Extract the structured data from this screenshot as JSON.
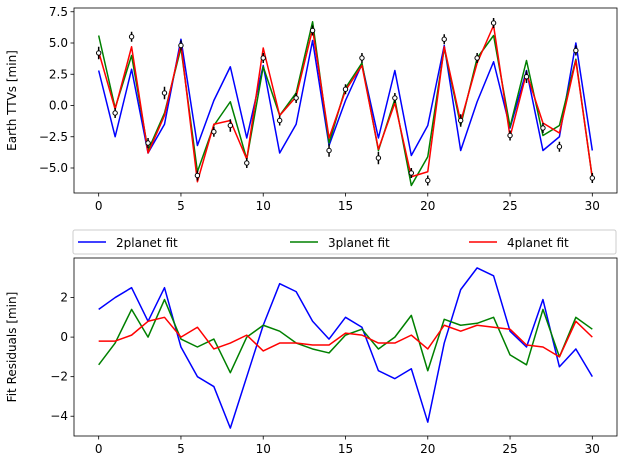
{
  "chart_data": [
    {
      "type": "line",
      "ylabel": "Earth TTVs [min]",
      "xlabel": "",
      "xlim": [
        -1.5,
        31.5
      ],
      "ylim": [
        -7.0,
        7.8
      ],
      "xticks": [
        0,
        5,
        10,
        15,
        20,
        25,
        30
      ],
      "xtick_labels": [
        "0",
        "5",
        "10",
        "15",
        "20",
        "25",
        "30"
      ],
      "yticks": [
        -5.0,
        -2.5,
        0.0,
        2.5,
        5.0,
        7.5
      ],
      "ytick_labels": [
        "−5.0",
        "−2.5",
        "0.0",
        "2.5",
        "5.0",
        "7.5"
      ],
      "grid": false,
      "x": [
        0,
        1,
        2,
        3,
        4,
        5,
        6,
        7,
        8,
        9,
        10,
        11,
        12,
        13,
        14,
        15,
        16,
        17,
        18,
        19,
        20,
        21,
        22,
        23,
        24,
        25,
        26,
        27,
        28,
        29,
        30
      ],
      "series": [
        {
          "name": "2planet fit",
          "color": "#0000ff",
          "values": [
            2.8,
            -2.5,
            2.9,
            -3.8,
            -1.5,
            5.3,
            -3.2,
            0.4,
            3.1,
            -2.6,
            3.2,
            -3.8,
            -1.5,
            5.2,
            -3.2,
            0.4,
            3.3,
            -2.6,
            2.8,
            -4.0,
            -1.6,
            4.8,
            -3.6,
            0.3,
            3.5,
            -1.8,
            2.8,
            -3.6,
            -2.5,
            5.0,
            -3.6
          ]
        },
        {
          "name": "3planet fit",
          "color": "#008000",
          "values": [
            5.6,
            -0.2,
            4.0,
            -3.6,
            -0.6,
            4.6,
            -5.3,
            -1.6,
            0.3,
            -4.3,
            3.1,
            -0.8,
            1.0,
            6.7,
            -3.0,
            1.4,
            3.4,
            -3.6,
            0.5,
            -6.4,
            -4.1,
            4.6,
            -1.6,
            3.8,
            5.6,
            -1.7,
            3.6,
            -2.4,
            -1.6,
            3.7,
            -5.8
          ]
        },
        {
          "name": "4planet fit",
          "color": "#ff0000",
          "values": [
            4.3,
            -0.3,
            4.7,
            -3.8,
            -0.8,
            4.9,
            -6.1,
            -1.5,
            -1.2,
            -4.3,
            4.6,
            -0.8,
            0.7,
            6.1,
            -2.6,
            1.2,
            3.2,
            -3.5,
            0.2,
            -5.7,
            -5.3,
            4.7,
            -1.3,
            3.4,
            6.4,
            -2.5,
            2.6,
            -1.4,
            -2.2,
            3.6,
            -5.8
          ]
        }
      ],
      "observations": {
        "values": [
          4.2,
          -0.6,
          5.5,
          -3.0,
          1.0,
          4.8,
          -5.6,
          -2.1,
          -1.6,
          -4.6,
          3.8,
          -1.2,
          0.6,
          6.0,
          -3.6,
          1.3,
          3.8,
          -4.2,
          0.6,
          -5.4,
          -6.0,
          5.3,
          -1.2,
          3.8,
          6.6,
          -2.4,
          2.3,
          -1.8,
          -3.3,
          4.4,
          -5.8
        ],
        "errors": [
          0.5,
          0.4,
          0.4,
          0.4,
          0.5,
          0.4,
          0.4,
          0.4,
          0.5,
          0.4,
          0.4,
          0.4,
          0.4,
          0.4,
          0.5,
          0.4,
          0.4,
          0.5,
          0.4,
          0.4,
          0.4,
          0.4,
          0.5,
          0.4,
          0.4,
          0.4,
          0.5,
          0.4,
          0.4,
          0.4,
          0.4
        ]
      }
    },
    {
      "type": "line",
      "ylabel": "Fit Residuals [min]",
      "xlabel": "",
      "xlim": [
        -1.5,
        31.5
      ],
      "ylim": [
        -5.0,
        4.0
      ],
      "xticks": [
        0,
        5,
        10,
        15,
        20,
        25,
        30
      ],
      "xtick_labels": [
        "0",
        "5",
        "10",
        "15",
        "20",
        "25",
        "30"
      ],
      "yticks": [
        -4,
        -2,
        0,
        2
      ],
      "ytick_labels": [
        "−4",
        "−2",
        "0",
        "2"
      ],
      "grid": false,
      "legend_placement": "above",
      "x": [
        0,
        1,
        2,
        3,
        4,
        5,
        6,
        7,
        8,
        9,
        10,
        11,
        12,
        13,
        14,
        15,
        16,
        17,
        18,
        19,
        20,
        21,
        22,
        23,
        24,
        25,
        26,
        27,
        28,
        29,
        30
      ],
      "series": [
        {
          "name": "2planet fit",
          "color": "#0000ff",
          "values": [
            1.4,
            2.0,
            2.5,
            0.8,
            2.5,
            -0.5,
            -2.0,
            -2.5,
            -4.6,
            -2.0,
            0.6,
            2.7,
            2.3,
            0.8,
            -0.1,
            1.0,
            0.5,
            -1.7,
            -2.1,
            -1.6,
            -4.3,
            -0.3,
            2.4,
            3.5,
            3.1,
            0.3,
            -0.5,
            1.9,
            -1.5,
            -0.6,
            -2.0
          ]
        },
        {
          "name": "3planet fit",
          "color": "#008000",
          "values": [
            -1.4,
            -0.3,
            1.4,
            0.0,
            1.9,
            -0.1,
            -0.5,
            -0.1,
            -1.8,
            0.0,
            0.6,
            0.3,
            -0.3,
            -0.6,
            -0.8,
            0.1,
            0.4,
            -0.6,
            0.0,
            1.1,
            -1.7,
            0.9,
            0.6,
            0.7,
            1.0,
            -0.9,
            -1.4,
            1.4,
            -1.0,
            1.0,
            0.4
          ]
        },
        {
          "name": "4planet fit",
          "color": "#ff0000",
          "values": [
            -0.2,
            -0.2,
            0.1,
            0.8,
            1.0,
            0.0,
            0.5,
            -0.6,
            -0.3,
            0.1,
            -0.7,
            -0.3,
            -0.3,
            -0.4,
            -0.4,
            0.2,
            0.1,
            -0.3,
            -0.3,
            0.1,
            -0.6,
            0.6,
            0.3,
            0.6,
            0.5,
            0.4,
            -0.4,
            -0.5,
            -1.0,
            0.8,
            0.0
          ]
        }
      ]
    }
  ],
  "legend": {
    "entries": [
      "2planet fit",
      "3planet fit",
      "4planet fit"
    ],
    "colors": [
      "#0000ff",
      "#008000",
      "#ff0000"
    ]
  }
}
